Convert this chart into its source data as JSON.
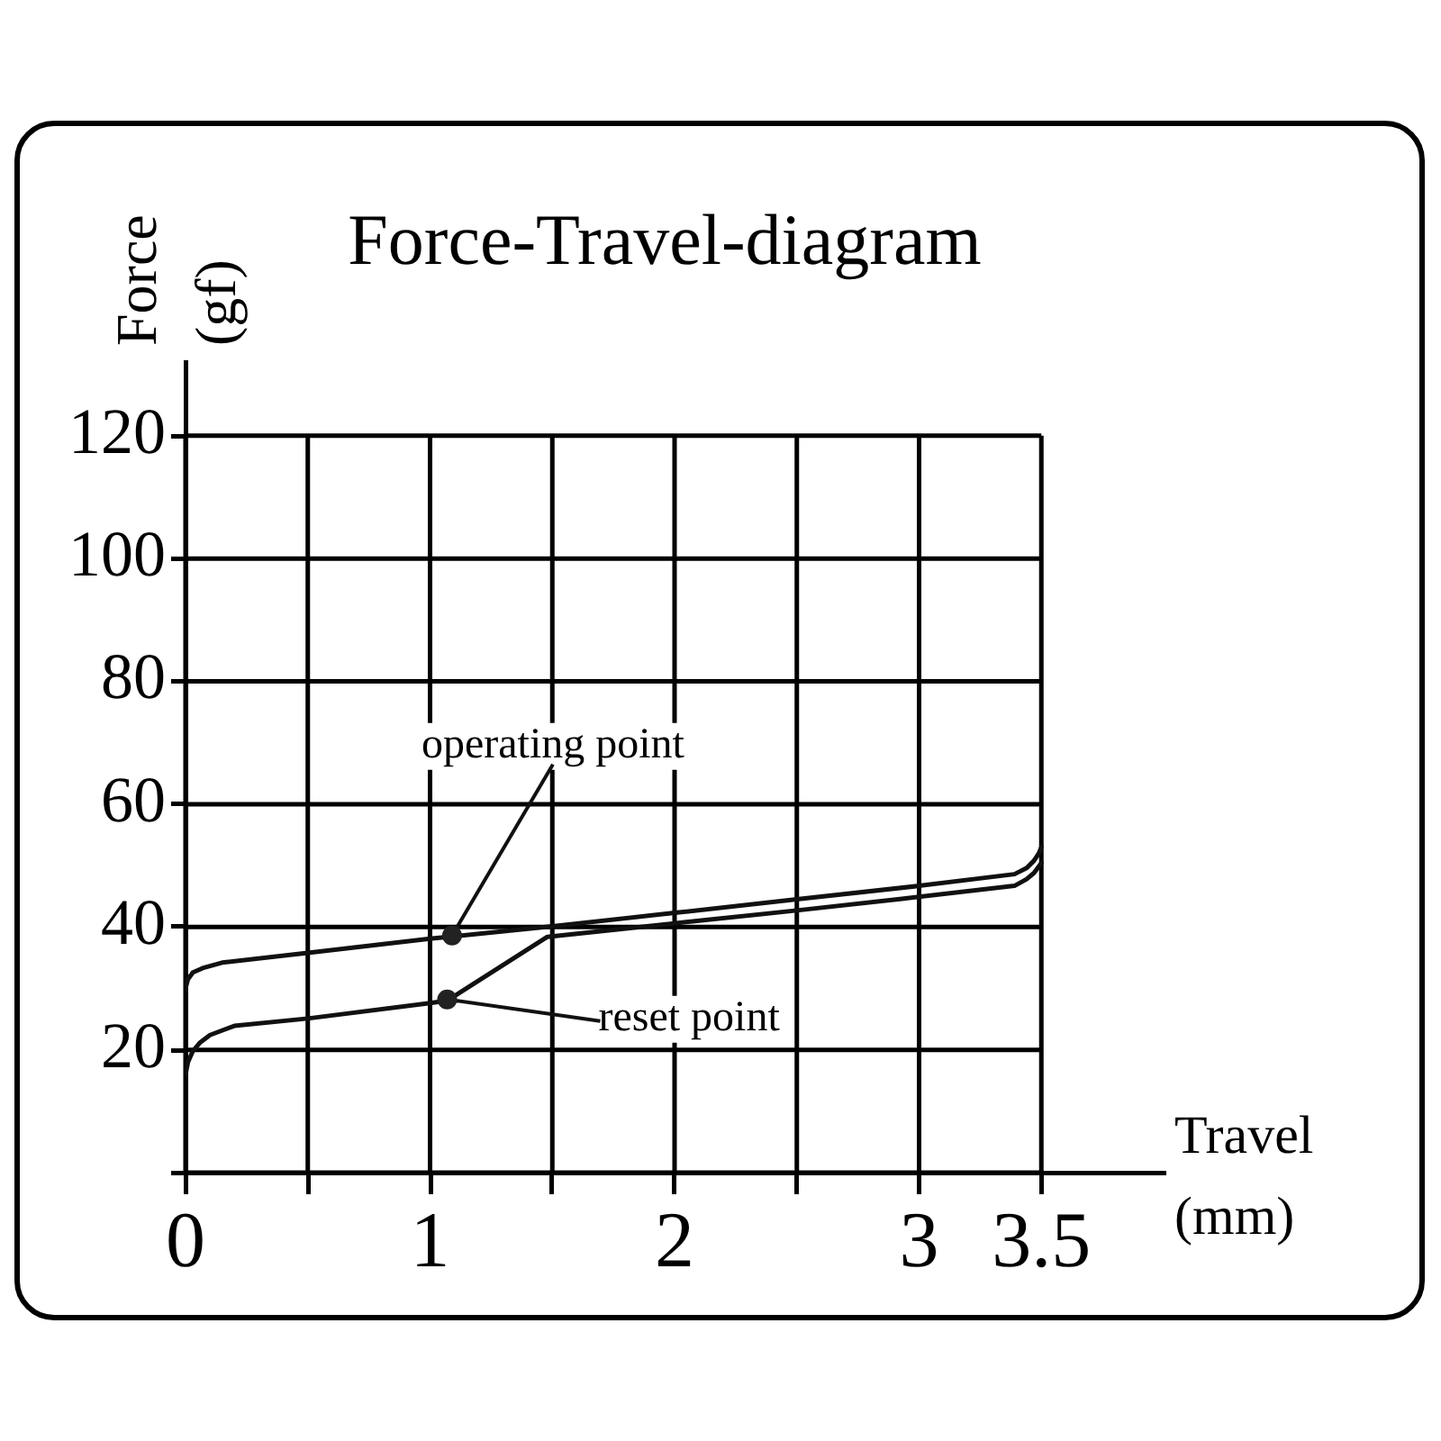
{
  "chart_data": {
    "type": "line",
    "title": "Force-Travel-diagram",
    "xlabel": "Travel (mm)",
    "ylabel": "Force (gf)",
    "series": [
      {
        "color": "#111111",
        "x": [
          0,
          0.01,
          0.03,
          0.07,
          0.15,
          0.5,
          1,
          1.5,
          2,
          2.5,
          3,
          3.39,
          3.44,
          3.47,
          3.49,
          3.5
        ],
        "values": [
          30,
          31.5,
          32.6,
          33.3,
          34.2,
          35.8,
          38.1,
          40.1,
          42.3,
          44.5,
          46.7,
          48.6,
          49.6,
          50.8,
          52,
          53
        ]
      },
      {
        "color": "#111111",
        "x": [
          0,
          0.01,
          0.03,
          0.06,
          0.1,
          0.2,
          0.5,
          1,
          1.07,
          1.48,
          2,
          2.5,
          2.93,
          3.39,
          3.44,
          3.47,
          3.5
        ],
        "values": [
          16,
          18,
          19.8,
          21.2,
          22.4,
          23.9,
          25.1,
          27.6,
          28,
          38.4,
          40.6,
          42.7,
          44.6,
          46.7,
          47.8,
          48.8,
          50.4
        ]
      }
    ],
    "xlim": [
      0,
      4
    ],
    "xticks": [
      0,
      {
        "value": 0.5,
        "label": null
      },
      1,
      {
        "value": 1.5,
        "label": null
      },
      2,
      {
        "value": 2.5,
        "label": null
      },
      3,
      3.5
    ],
    "ylim": [
      0,
      132
    ],
    "yticks": [
      {
        "value": 0,
        "label": null
      },
      20,
      40,
      60,
      80,
      100,
      120
    ],
    "grid": true,
    "marker": "none",
    "line_style": "solid",
    "annotations": [
      {
        "text": "operating point",
        "x": 1.09,
        "y": 38.6
      },
      {
        "text": "reset point",
        "x": 1.07,
        "y": 28.2
      }
    ]
  }
}
